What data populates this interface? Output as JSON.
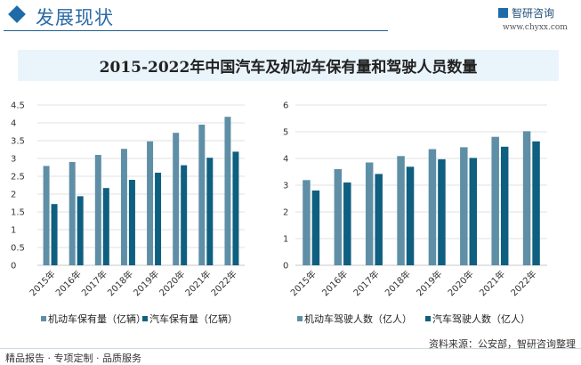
{
  "header": {
    "title": "发展现状",
    "logo_text": "智研咨询",
    "url": "www.chyxx.com"
  },
  "chart_title": "2015-2022年中国汽车及机动车保有量和驾驶人员数量",
  "footer": {
    "left": "精品报告 · 专项定制 · 品质服务",
    "source": "资料来源：公安部，智研咨询整理"
  },
  "colors": {
    "series1": "#5f8fa6",
    "series2": "#0f5f80"
  },
  "chart_data": [
    {
      "type": "bar",
      "categories": [
        "2015年",
        "2016年",
        "2017年",
        "2018年",
        "2019年",
        "2020年",
        "2021年",
        "2022年"
      ],
      "series": [
        {
          "name": "机动车保有量（亿辆）",
          "values": [
            2.79,
            2.9,
            3.1,
            3.27,
            3.48,
            3.72,
            3.95,
            4.17
          ]
        },
        {
          "name": "汽车保有量（亿辆）",
          "values": [
            1.72,
            1.94,
            2.17,
            2.4,
            2.6,
            2.81,
            3.02,
            3.19
          ]
        }
      ],
      "ylim": [
        0,
        4.5
      ],
      "yticks": [
        "0",
        "0.5",
        "1",
        "1.5",
        "2",
        "2.5",
        "3",
        "3.5",
        "4",
        "4.5"
      ],
      "grid": true,
      "legend": "bottom"
    },
    {
      "type": "bar",
      "categories": [
        "2015年",
        "2016年",
        "2017年",
        "2018年",
        "2019年",
        "2020年",
        "2021年",
        "2022年"
      ],
      "series": [
        {
          "name": "机动车驾驶人数（亿人）",
          "values": [
            3.19,
            3.6,
            3.85,
            4.09,
            4.35,
            4.42,
            4.81,
            5.02
          ]
        },
        {
          "name": "汽车驾驶人数（亿人）",
          "values": [
            2.8,
            3.1,
            3.42,
            3.69,
            3.97,
            4.02,
            4.44,
            4.64
          ]
        }
      ],
      "ylim": [
        0,
        6
      ],
      "yticks": [
        "0",
        "1",
        "2",
        "3",
        "4",
        "5",
        "6"
      ],
      "grid": true,
      "legend": "bottom"
    }
  ]
}
